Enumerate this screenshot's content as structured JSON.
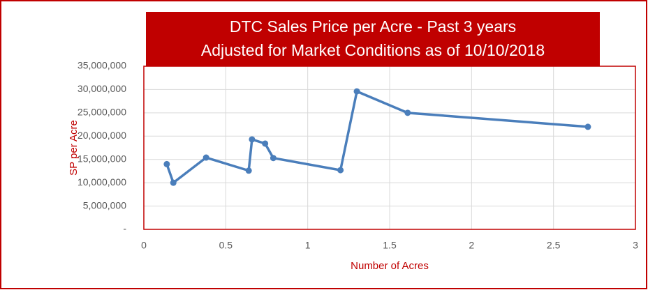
{
  "chart_data": {
    "type": "line",
    "title": "DTC Sales Price per Acre - Past 3 years",
    "subtitle": "Adjusted for Market Conditions as of 10/10/2018",
    "x_label": "Number of Acres",
    "y_label": "SP per Acre",
    "series": [
      {
        "color": "#4a7ebb",
        "x": [
          0.14,
          0.18,
          0.38,
          0.64,
          0.66,
          0.74,
          0.79,
          1.2,
          1.3,
          1.61,
          2.71
        ],
        "values": [
          14000000,
          10000000,
          15400000,
          12600000,
          19300000,
          18400000,
          15300000,
          12700000,
          29600000,
          25000000,
          22000000
        ]
      }
    ],
    "xlim": [
      0,
      3
    ],
    "xticks": [
      0,
      0.5,
      1,
      1.5,
      2,
      2.5,
      3
    ],
    "ylim": [
      0,
      35000000
    ],
    "yticks": [
      {
        "value": 0,
        "label": "-"
      },
      {
        "value": 5000000,
        "label": "5,000,000"
      },
      {
        "value": 10000000,
        "label": "10,000,000"
      },
      {
        "value": 15000000,
        "label": "15,000,000"
      },
      {
        "value": 20000000,
        "label": "20,000,000"
      },
      {
        "value": 25000000,
        "label": "25,000,000"
      },
      {
        "value": 30000000,
        "label": "30,000,000"
      },
      {
        "value": 35000000,
        "label": "35,000,000"
      }
    ],
    "grid": true,
    "frame_color": "#c00000"
  }
}
